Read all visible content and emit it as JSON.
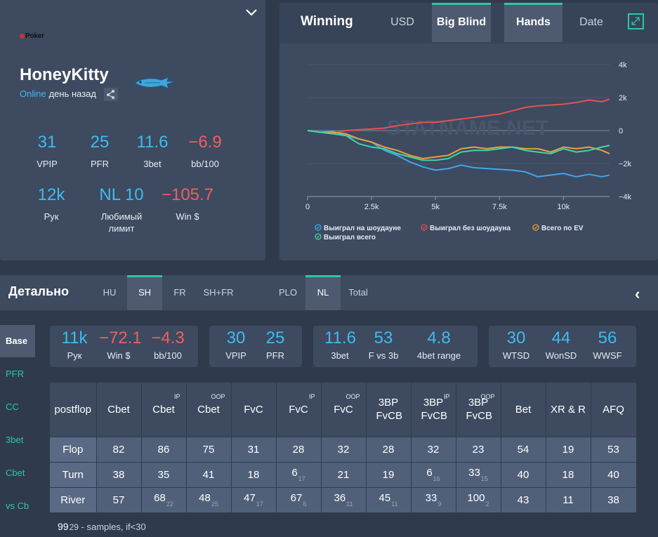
{
  "profile": {
    "brand": "Poker",
    "name": "HoneyKitty",
    "status_online": "Online",
    "status_ago": "день назад",
    "stats": [
      {
        "value": "31",
        "label": "VPIP",
        "color": "#3fbbf0"
      },
      {
        "value": "25",
        "label": "PFR",
        "color": "#3fbbf0"
      },
      {
        "value": "11.6",
        "label": "3bet",
        "color": "#3fbbf0"
      },
      {
        "value": "−6.9",
        "label": "bb/100",
        "color": "#ef5f5f"
      },
      {
        "value": "12k",
        "label": "Рук",
        "color": "#3fbbf0"
      },
      {
        "value": "NL 10",
        "label": "Любимый лимит",
        "color": "#3fbbf0"
      },
      {
        "value": "−105.7",
        "label": "Win $",
        "color": "#ef5f5f"
      }
    ]
  },
  "chart_card": {
    "title": "Winning",
    "tabs": [
      {
        "label": "USD",
        "active": false
      },
      {
        "label": "Big Blind",
        "active": true
      },
      {
        "label": "Hands",
        "active": true
      },
      {
        "label": "Date",
        "active": false
      }
    ]
  },
  "chart_data": {
    "type": "line",
    "watermark": "STATNAME.NET",
    "x_ticks": [
      "0",
      "2.5k",
      "5k",
      "7.5k",
      "10k"
    ],
    "y_ticks": [
      "4k",
      "2k",
      "0",
      "−2k",
      "−4k"
    ],
    "xlim": [
      0,
      11800
    ],
    "ylim": [
      -4000,
      4000
    ],
    "x": [
      0,
      500,
      1000,
      1500,
      2000,
      2500,
      3000,
      3500,
      4000,
      4500,
      5000,
      5500,
      6000,
      6500,
      7000,
      7500,
      8000,
      8500,
      9000,
      9500,
      10000,
      10500,
      11000,
      11500,
      11800
    ],
    "series": [
      {
        "name": "Выиграл на шоудауне",
        "color": "#3fa6ee",
        "values": [
          0,
          -100,
          -50,
          -300,
          -500,
          -700,
          -1200,
          -1500,
          -1900,
          -2200,
          -2400,
          -2300,
          -2100,
          -2250,
          -2300,
          -2350,
          -2400,
          -2500,
          -2800,
          -2700,
          -2600,
          -2800,
          -2650,
          -2800,
          -2700
        ]
      },
      {
        "name": "Выиграл без шоудауна",
        "color": "#e85050",
        "values": [
          0,
          -100,
          -150,
          0,
          50,
          100,
          150,
          300,
          400,
          500,
          500,
          600,
          700,
          800,
          900,
          1000,
          1200,
          1400,
          1500,
          1550,
          1600,
          1700,
          1850,
          1750,
          1900
        ]
      },
      {
        "name": "Всего по EV",
        "color": "#e8a23a",
        "values": [
          0,
          -100,
          -100,
          -200,
          -500,
          -700,
          -1000,
          -1200,
          -1500,
          -1700,
          -1600,
          -1500,
          -1100,
          -1000,
          -1100,
          -1000,
          -1000,
          -1100,
          -1100,
          -1300,
          -1000,
          -1100,
          -1000,
          -1200,
          -1400
        ]
      },
      {
        "name": "Выиграл всего",
        "color": "#3fd6a6",
        "values": [
          0,
          -100,
          -200,
          -300,
          -800,
          -1000,
          -1100,
          -1400,
          -1600,
          -1800,
          -1800,
          -1700,
          -1300,
          -1200,
          -1200,
          -1100,
          -1000,
          -1200,
          -1300,
          -1400,
          -1100,
          -1300,
          -1200,
          -1000,
          -900
        ]
      }
    ]
  },
  "detail": {
    "title": "Детально",
    "tabs": [
      {
        "label": "HU",
        "active": false
      },
      {
        "label": "SH",
        "active": true
      },
      {
        "label": "FR",
        "active": false
      },
      {
        "label": "SH+FR",
        "active": false
      },
      {
        "label": "PLO",
        "active": false
      },
      {
        "label": "NL",
        "active": true
      },
      {
        "label": "Total",
        "active": false
      }
    ],
    "left_menu": [
      {
        "label": "Base",
        "active": true
      },
      {
        "label": "PFR",
        "active": false
      },
      {
        "label": "CC",
        "active": false
      },
      {
        "label": "3bet",
        "active": false
      },
      {
        "label": "Cbet",
        "active": false
      },
      {
        "label": "vs Cb",
        "active": false
      }
    ],
    "boxes": [
      [
        {
          "value": "11k",
          "label": "Рук",
          "color": "#3fbbf0"
        },
        {
          "value": "−72.1",
          "label": "Win $",
          "color": "#ef5f5f"
        },
        {
          "value": "−4.3",
          "label": "bb/100",
          "color": "#ef5f5f"
        }
      ],
      [
        {
          "value": "30",
          "label": "VPIP",
          "color": "#3fbbf0"
        },
        {
          "value": "25",
          "label": "PFR",
          "color": "#3fbbf0"
        }
      ],
      [
        {
          "value": "11.6",
          "label": "3bet",
          "color": "#3fbbf0"
        },
        {
          "value": "53",
          "label": "F vs 3b",
          "color": "#3fbbf0"
        },
        {
          "value": "4.8",
          "label": "4bet range",
          "color": "#3fbbf0"
        }
      ],
      [
        {
          "value": "30",
          "label": "WTSD",
          "color": "#3fbbf0"
        },
        {
          "value": "44",
          "label": "WonSD",
          "color": "#3fbbf0"
        },
        {
          "value": "56",
          "label": "WWSF",
          "color": "#3fbbf0"
        }
      ]
    ],
    "table": {
      "headers": [
        {
          "label": "postflop",
          "sup": ""
        },
        {
          "label": "Cbet",
          "sup": ""
        },
        {
          "label": "Cbet",
          "sup": "IP"
        },
        {
          "label": "Cbet",
          "sup": "OOP"
        },
        {
          "label": "FvC",
          "sup": ""
        },
        {
          "label": "FvC",
          "sup": "IP"
        },
        {
          "label": "FvC",
          "sup": "OOP"
        },
        {
          "label": "3BP FvCB",
          "sup": ""
        },
        {
          "label": "3BP FvCB",
          "sup": "IP"
        },
        {
          "label": "3BP FvCB",
          "sup": "OOP"
        },
        {
          "label": "Bet",
          "sup": ""
        },
        {
          "label": "XR & R",
          "sup": ""
        },
        {
          "label": "AFQ",
          "sup": ""
        }
      ],
      "rows": [
        {
          "street": "Flop",
          "cells": [
            {
              "v": "82",
              "s": ""
            },
            {
              "v": "86",
              "s": ""
            },
            {
              "v": "75",
              "s": ""
            },
            {
              "v": "31",
              "s": ""
            },
            {
              "v": "28",
              "s": ""
            },
            {
              "v": "32",
              "s": ""
            },
            {
              "v": "28",
              "s": ""
            },
            {
              "v": "32",
              "s": ""
            },
            {
              "v": "23",
              "s": ""
            },
            {
              "v": "54",
              "s": ""
            },
            {
              "v": "19",
              "s": ""
            },
            {
              "v": "53",
              "s": ""
            }
          ]
        },
        {
          "street": "Turn",
          "cells": [
            {
              "v": "38",
              "s": ""
            },
            {
              "v": "35",
              "s": ""
            },
            {
              "v": "41",
              "s": ""
            },
            {
              "v": "18",
              "s": ""
            },
            {
              "v": "6",
              "s": "17"
            },
            {
              "v": "21",
              "s": ""
            },
            {
              "v": "19",
              "s": ""
            },
            {
              "v": "6",
              "s": "16"
            },
            {
              "v": "33",
              "s": "15"
            },
            {
              "v": "40",
              "s": ""
            },
            {
              "v": "18",
              "s": ""
            },
            {
              "v": "40",
              "s": ""
            }
          ]
        },
        {
          "street": "River",
          "cells": [
            {
              "v": "57",
              "s": ""
            },
            {
              "v": "68",
              "s": "22"
            },
            {
              "v": "48",
              "s": "25"
            },
            {
              "v": "47",
              "s": "17"
            },
            {
              "v": "67",
              "s": "6"
            },
            {
              "v": "36",
              "s": "11"
            },
            {
              "v": "45",
              "s": "11"
            },
            {
              "v": "33",
              "s": "9"
            },
            {
              "v": "100",
              "s": "2"
            },
            {
              "v": "43",
              "s": ""
            },
            {
              "v": "11",
              "s": ""
            },
            {
              "v": "38",
              "s": ""
            }
          ]
        }
      ]
    },
    "footnote_num": "99",
    "footnote_sub": "29",
    "footnote_text": " - samples, if<30"
  }
}
